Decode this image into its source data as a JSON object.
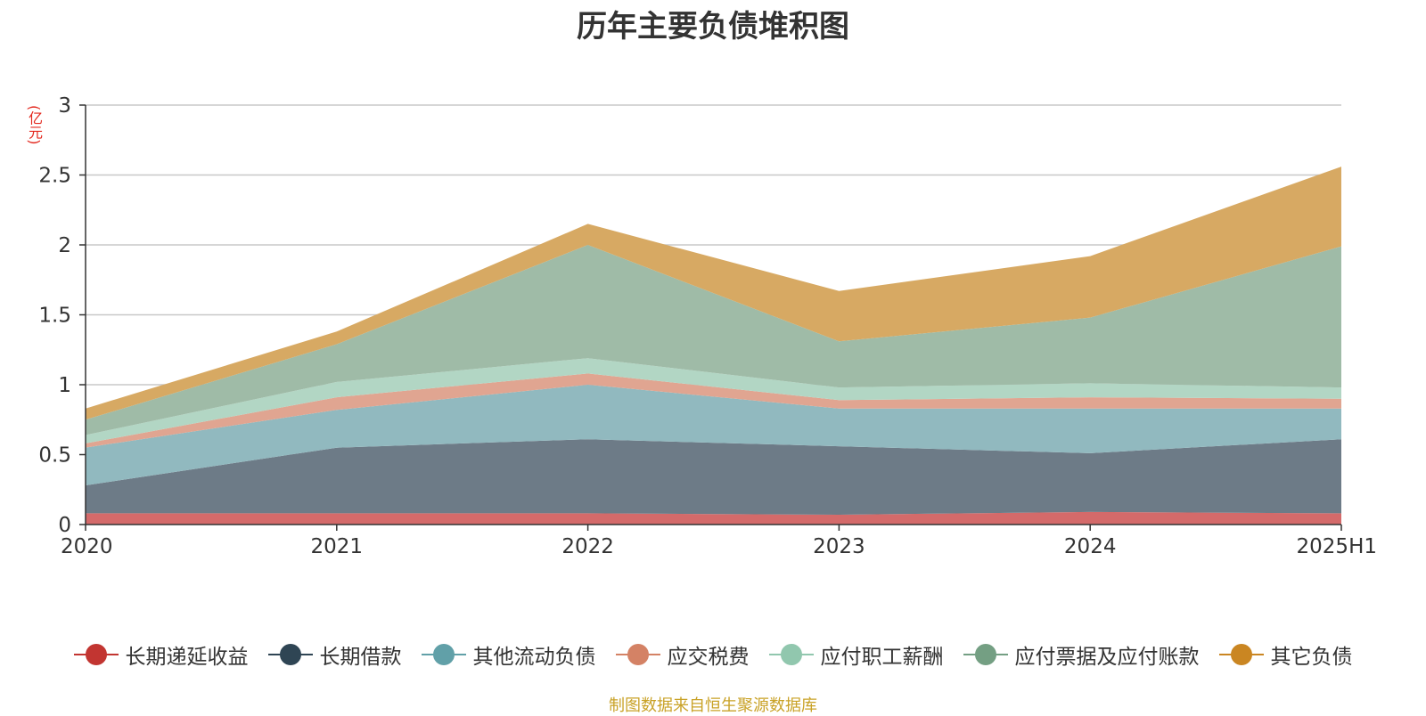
{
  "chart_data": {
    "type": "area",
    "stacked": true,
    "title": "历年主要负债堆积图",
    "y_unit": "(亿元)",
    "x": [
      "2020",
      "2021",
      "2022",
      "2023",
      "2024",
      "2025H1"
    ],
    "ylim": [
      0,
      3
    ],
    "yticks": [
      "0",
      "0.5",
      "1",
      "1.5",
      "2",
      "2.5",
      "3"
    ],
    "grid": true,
    "legend_position": "bottom",
    "series": [
      {
        "name": "长期递延收益",
        "color": "#c23531",
        "fill": "#d46a6a",
        "values": [
          0.08,
          0.08,
          0.08,
          0.07,
          0.09,
          0.08
        ]
      },
      {
        "name": "长期借款",
        "color": "#2f4554",
        "fill": "#6d7b87",
        "values": [
          0.2,
          0.47,
          0.53,
          0.49,
          0.42,
          0.53
        ]
      },
      {
        "name": "其他流动负债",
        "color": "#61a0a8",
        "fill": "#91b9bf",
        "values": [
          0.27,
          0.27,
          0.39,
          0.27,
          0.32,
          0.22
        ]
      },
      {
        "name": "应交税费",
        "color": "#d48265",
        "fill": "#e0a591",
        "values": [
          0.03,
          0.09,
          0.08,
          0.06,
          0.08,
          0.07
        ]
      },
      {
        "name": "应付职工薪酬",
        "color": "#91c7ae",
        "fill": "#b2d6c4",
        "values": [
          0.06,
          0.11,
          0.11,
          0.09,
          0.1,
          0.08
        ]
      },
      {
        "name": "应付票据及应付账款",
        "color": "#749f83",
        "fill": "#9fbba7",
        "values": [
          0.11,
          0.27,
          0.81,
          0.33,
          0.47,
          1.01
        ]
      },
      {
        "name": "其它负债",
        "color": "#ca8622",
        "fill": "#d7a963",
        "values": [
          0.08,
          0.09,
          0.15,
          0.36,
          0.44,
          0.57
        ]
      }
    ],
    "source": "制图数据来自恒生聚源数据库"
  }
}
